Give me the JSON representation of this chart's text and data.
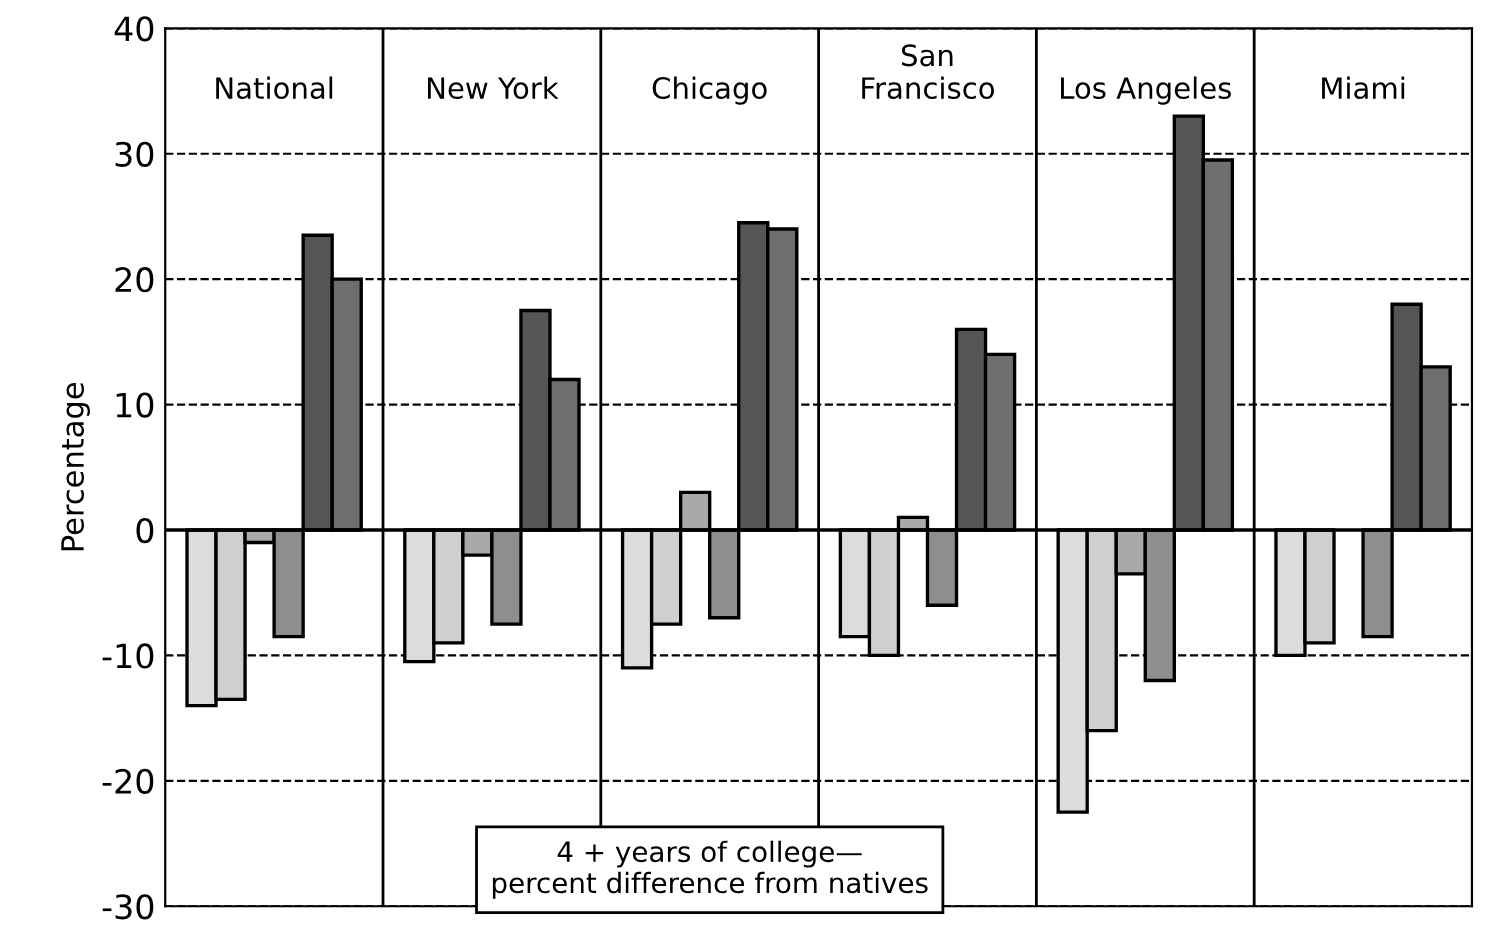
{
  "chart_data": {
    "type": "bar",
    "ylabel": "Percentage",
    "categories": [
      "National",
      "New York",
      "Chicago",
      "San\nFrancisco",
      "Los Angeles",
      "Miami"
    ],
    "series": [
      {
        "color": "#dcdcdc",
        "values": [
          -14,
          -10.5,
          -11,
          -8.5,
          -22.5,
          -10
        ]
      },
      {
        "color": "#cfcfcf",
        "values": [
          -13.5,
          -9,
          -7.5,
          -10,
          -16,
          -9
        ]
      },
      {
        "color": "#a9a9a9",
        "values": [
          -1,
          -2,
          3,
          1,
          -3.5,
          null
        ]
      },
      {
        "color": "#8e8e8e",
        "values": [
          -8.5,
          -7.5,
          -7,
          -6,
          -12,
          -8.5
        ]
      },
      {
        "color": "#555555",
        "values": [
          23.5,
          17.5,
          24.5,
          16,
          33,
          18
        ]
      },
      {
        "color": "#6e6e6e",
        "values": [
          20,
          12,
          24,
          14,
          29.5,
          13
        ]
      }
    ],
    "ylim": [
      -30,
      40
    ],
    "yticks": [
      -30,
      -20,
      -10,
      0,
      10,
      20,
      30,
      40
    ],
    "grid": true,
    "annotations": [
      "4 + years of college—\npercent difference from natives"
    ]
  }
}
